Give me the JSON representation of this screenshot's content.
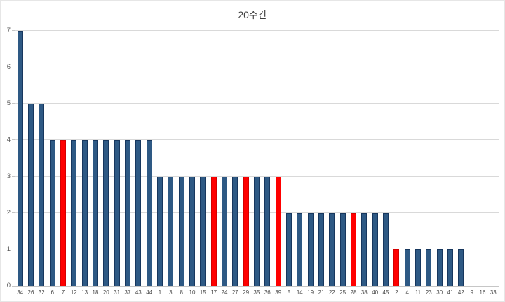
{
  "chart_data": {
    "type": "bar",
    "title": "20주간",
    "categories": [
      34,
      26,
      32,
      6,
      7,
      12,
      13,
      18,
      20,
      31,
      37,
      43,
      44,
      1,
      3,
      8,
      10,
      15,
      17,
      24,
      27,
      29,
      35,
      36,
      39,
      5,
      14,
      19,
      21,
      22,
      25,
      28,
      38,
      40,
      45,
      2,
      4,
      11,
      23,
      30,
      41,
      42,
      9,
      16,
      33
    ],
    "values": [
      7,
      5,
      5,
      4,
      4,
      4,
      4,
      4,
      4,
      4,
      4,
      4,
      4,
      3,
      3,
      3,
      3,
      3,
      3,
      3,
      3,
      3,
      3,
      3,
      3,
      2,
      2,
      2,
      2,
      2,
      2,
      2,
      2,
      2,
      2,
      1,
      1,
      1,
      1,
      1,
      1,
      1,
      0,
      0,
      0
    ],
    "highlight_categories": [
      7,
      17,
      29,
      39,
      28,
      2
    ],
    "xlabel": "",
    "ylabel": "",
    "ylim": [
      0,
      7
    ],
    "yticks": [
      0,
      1,
      2,
      3,
      4,
      5,
      6,
      7
    ],
    "grid": true,
    "legend": "none",
    "colors": {
      "bar_fill": "#2E5984",
      "bar_border": "#17375E",
      "highlight_fill": "#FF0000",
      "highlight_border": "#D40000",
      "gridline": "#D9D9D9",
      "axis_line": "#C6C6C6",
      "title_text": "#3F3F3F",
      "y_tick_label": "#595959",
      "x_tick_label": "#474747"
    }
  }
}
